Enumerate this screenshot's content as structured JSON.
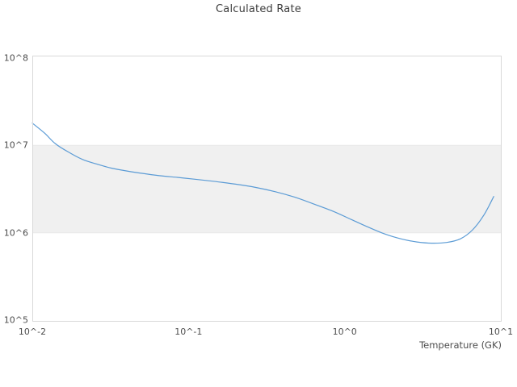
{
  "chart_data": {
    "type": "line",
    "title": "Calculated Rate",
    "xlabel": "Temperature (GK)",
    "ylabel": "",
    "x_scale": "log",
    "y_scale": "log",
    "xlim": [
      0.01,
      10
    ],
    "ylim": [
      100000.0,
      100000000.0
    ],
    "grid": false,
    "legend": "none",
    "x_ticks": {
      "labels": [
        "10^-2",
        "10^-1",
        "10^0",
        "10^1"
      ],
      "values": [
        0.01,
        0.1,
        1,
        10
      ]
    },
    "y_ticks": {
      "labels": [
        "10^5",
        "10^6",
        "10^7",
        "10^8"
      ],
      "values": [
        100000.0,
        1000000.0,
        10000000.0,
        100000000.0
      ]
    },
    "plot_band": {
      "from": 1000000.0,
      "to": 10000000.0,
      "color": "#f0f0f0",
      "edge_color": "#e7e7e7"
    },
    "colors": {
      "line": "#5b9bd5",
      "border": "#d9d9d9",
      "title_text": "#3c3c3c",
      "tick_text": "#4d4d4d",
      "background": "#ffffff"
    },
    "series": [
      {
        "name": "Calculated Rate",
        "x": [
          0.01,
          0.012,
          0.014,
          0.017,
          0.021,
          0.026,
          0.032,
          0.04,
          0.05,
          0.065,
          0.085,
          0.11,
          0.15,
          0.2,
          0.27,
          0.36,
          0.48,
          0.65,
          0.85,
          1.1,
          1.4,
          1.8,
          2.3,
          2.9,
          3.6,
          4.5,
          5.5,
          6.6,
          7.8,
          9.0
        ],
        "y": [
          18000000.0,
          13800000.0,
          10500000.0,
          8400000.0,
          6900000.0,
          6100000.0,
          5500000.0,
          5100000.0,
          4800000.0,
          4500000.0,
          4300000.0,
          4100000.0,
          3850000.0,
          3600000.0,
          3300000.0,
          2950000.0,
          2550000.0,
          2100000.0,
          1750000.0,
          1420000.0,
          1170000.0,
          970000.0,
          850000.0,
          785000.0,
          760000.0,
          775000.0,
          850000.0,
          1080000.0,
          1600000.0,
          2600000.0
        ]
      }
    ]
  }
}
